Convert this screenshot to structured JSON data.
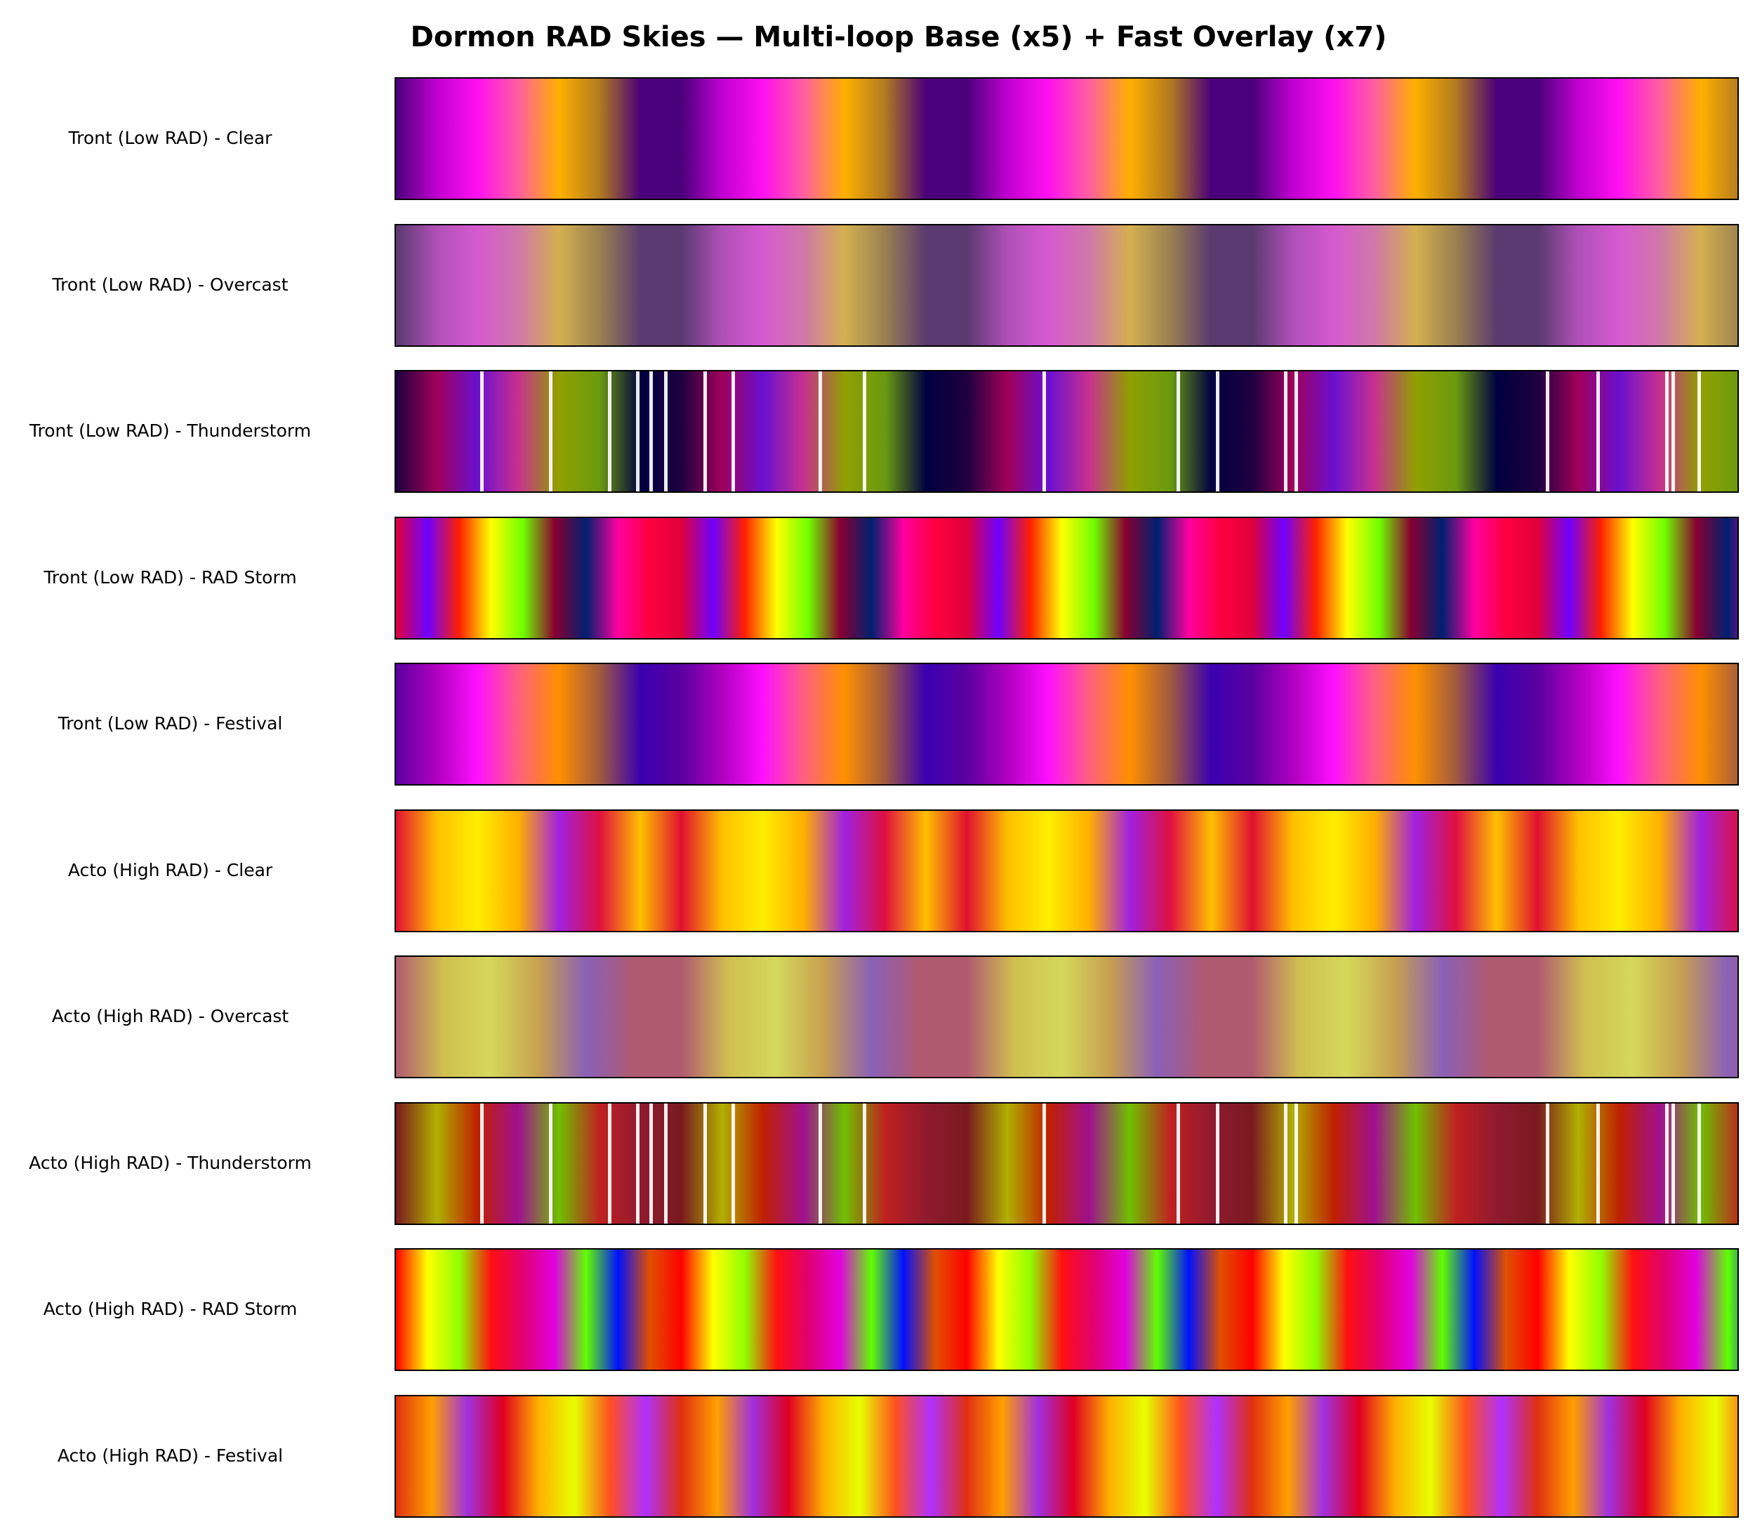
{
  "chart_data": {
    "type": "heatmap",
    "title": "Dormon RAD Skies — Multi-loop Base (x5) + Fast Overlay (x7)",
    "xlabel": "",
    "ylabel": "",
    "rows": [
      {
        "label": "Tront (Low RAD) - Clear",
        "cycles": 4.7,
        "stops": [
          "#4a007a",
          "#c000d0",
          "#ff10f0",
          "#ff5fa0",
          "#ffb000",
          "#b07a20",
          "#4a007a"
        ],
        "flashes": []
      },
      {
        "label": "Tront (Low RAD) - Overcast",
        "cycles": 4.7,
        "stops": [
          "#5a3a70",
          "#b050b8",
          "#d65ad0",
          "#d078a8",
          "#d4b050",
          "#9a8050",
          "#5a3a70"
        ],
        "flashes": []
      },
      {
        "label": "Tront (Low RAD) - Thunderstorm",
        "cycles": 4.7,
        "stops": [
          "#1e0040",
          "#a0005a",
          "#6a10d0",
          "#c83090",
          "#90a000",
          "#6a9a10",
          "#000040"
        ],
        "flashes": [
          0.063,
          0.114,
          0.158,
          0.179,
          0.189,
          0.2,
          0.229,
          0.25,
          0.315,
          0.348,
          0.482,
          0.582,
          0.611,
          0.662,
          0.67,
          0.857,
          0.895,
          0.946,
          0.951,
          0.97
        ]
      },
      {
        "label": "Tront (Low RAD) - RAD Storm",
        "cycles": 4.7,
        "stops": [
          "#e0003a",
          "#7000ff",
          "#ff2000",
          "#ffff00",
          "#70ff00",
          "#8a0030",
          "#002070",
          "#ff00a0",
          "#ff0040"
        ],
        "flashes": []
      },
      {
        "label": "Tront (Low RAD) - Festival",
        "cycles": 4.7,
        "stops": [
          "#5a00a0",
          "#b000c0",
          "#ff10ff",
          "#ff6080",
          "#ff9000",
          "#a05a40",
          "#3a00b0"
        ],
        "flashes": []
      },
      {
        "label": "Acto (High RAD) - Clear",
        "cycles": 4.7,
        "stops": [
          "#e01030",
          "#ffc000",
          "#ffee00",
          "#ffb000",
          "#a020e0",
          "#e01040",
          "#ffc000"
        ],
        "flashes": []
      },
      {
        "label": "Acto (High RAD) - Overcast",
        "cycles": 4.7,
        "stops": [
          "#b05a70",
          "#d0c050",
          "#d4d85a",
          "#c8a050",
          "#8a60b8",
          "#b05a70"
        ],
        "flashes": []
      },
      {
        "label": "Acto (High RAD) - Thunderstorm",
        "cycles": 4.7,
        "stops": [
          "#7a1a20",
          "#b0b000",
          "#c02000",
          "#a01090",
          "#70c000",
          "#c02020",
          "#901a30"
        ],
        "flashes": [
          0.063,
          0.114,
          0.158,
          0.179,
          0.189,
          0.2,
          0.229,
          0.25,
          0.315,
          0.348,
          0.482,
          0.582,
          0.611,
          0.662,
          0.67,
          0.857,
          0.895,
          0.946,
          0.951,
          0.97
        ]
      },
      {
        "label": "Acto (High RAD) - RAD Storm",
        "cycles": 4.7,
        "stops": [
          "#ff0000",
          "#ffff00",
          "#90ff00",
          "#ff1010",
          "#e00070",
          "#e000e0",
          "#60ff00",
          "#0010ff",
          "#e05000"
        ],
        "flashes": []
      },
      {
        "label": "Acto (High RAD) - Festival",
        "cycles": 4.7,
        "stops": [
          "#e03010",
          "#ffa000",
          "#a030e0",
          "#e00020",
          "#ffb000",
          "#e8ff00",
          "#ff5020",
          "#b030ff"
        ],
        "flashes": []
      }
    ]
  }
}
